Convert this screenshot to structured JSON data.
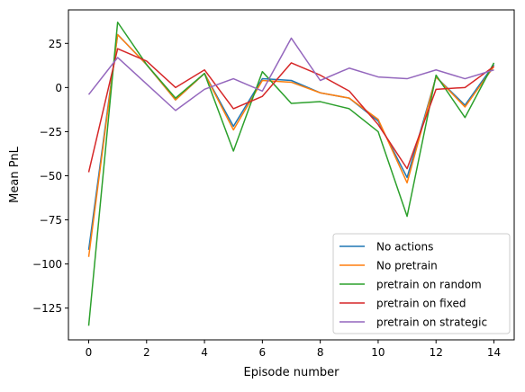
{
  "chart_data": {
    "type": "line",
    "title": "",
    "xlabel": "Episode number",
    "ylabel": "Mean PnL",
    "xlim": [
      -0.7,
      14.7
    ],
    "ylim": [
      -143,
      44
    ],
    "xticks": [
      0,
      2,
      4,
      6,
      8,
      10,
      12,
      14
    ],
    "xtick_labels": [
      "0",
      "2",
      "4",
      "6",
      "8",
      "10",
      "12",
      "14"
    ],
    "yticks": [
      25,
      0,
      -25,
      -50,
      -75,
      -100,
      -125
    ],
    "ytick_labels": [
      "25",
      "0",
      "−25",
      "−50",
      "−75",
      "−100",
      "−125"
    ],
    "grid": false,
    "legend_position": "lower-right",
    "x": [
      0,
      1,
      2,
      3,
      4,
      5,
      6,
      7,
      8,
      9,
      10,
      11,
      12,
      13,
      14
    ],
    "series": [
      {
        "name": "No actions",
        "color": "#1f77b4",
        "values": [
          -92,
          30,
          13,
          -7,
          8,
          -22,
          5,
          4,
          -3,
          -6,
          -19,
          -51,
          6,
          -10,
          13
        ]
      },
      {
        "name": "No pretrain",
        "color": "#ff7f0e",
        "values": [
          -96,
          30,
          13,
          -7,
          8,
          -24,
          4,
          3,
          -3,
          -6,
          -18,
          -54,
          6,
          -11,
          12
        ]
      },
      {
        "name": "pretrain on random",
        "color": "#2ca02c",
        "values": [
          -135,
          37,
          13,
          -6,
          8,
          -36,
          9,
          -9,
          -8,
          -12,
          -25,
          -73,
          7,
          -17,
          14
        ]
      },
      {
        "name": "pretrain on fixed",
        "color": "#d62728",
        "values": [
          -48,
          22,
          15,
          0,
          10,
          -12,
          -5,
          14,
          7,
          -2,
          -21,
          -46,
          -1,
          0,
          12
        ]
      },
      {
        "name": "pretrain on strategic",
        "color": "#9467bd",
        "values": [
          -4,
          17,
          2,
          -13,
          -1,
          5,
          -2,
          28,
          4,
          11,
          6,
          5,
          10,
          5,
          10
        ]
      }
    ]
  }
}
